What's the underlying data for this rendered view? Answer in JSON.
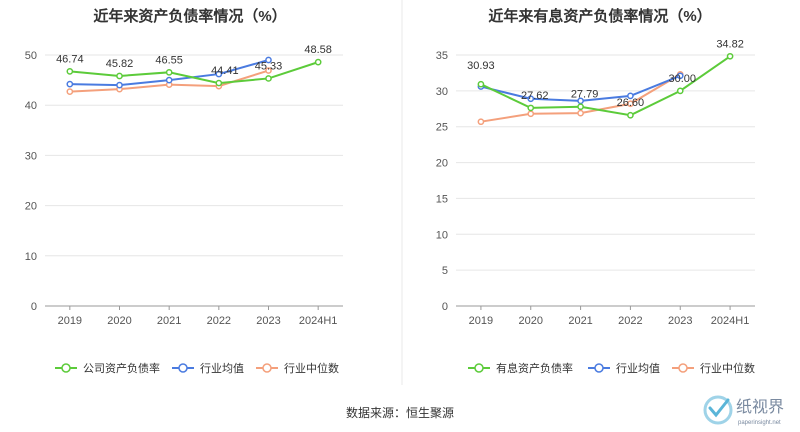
{
  "source_label": "数据来源：恒生聚源",
  "logo": {
    "name": "纸视界",
    "url": "paperinsight.net"
  },
  "colors": {
    "green": "#5ccb3a",
    "blue": "#4a7be0",
    "orange": "#f4a07c"
  },
  "chart_data": [
    {
      "type": "line",
      "title": "近年来资产负债率情况（%）",
      "categories": [
        "2019",
        "2020",
        "2021",
        "2022",
        "2023",
        "2024H1"
      ],
      "ylim": [
        0,
        50
      ],
      "yticks": [
        0,
        10,
        20,
        30,
        40,
        50
      ],
      "grid": true,
      "legend_position": "bottom",
      "series": [
        {
          "name": "公司资产负债率",
          "color": "#5ccb3a",
          "values": [
            46.74,
            45.82,
            46.55,
            44.41,
            45.33,
            48.58
          ],
          "labels": [
            "46.74",
            "45.82",
            "46.55",
            "44.41",
            "45.33",
            "48.58"
          ]
        },
        {
          "name": "行业均值",
          "color": "#4a7be0",
          "values": [
            44.2,
            44.0,
            45.0,
            46.2,
            49.0,
            null
          ]
        },
        {
          "name": "行业中位数",
          "color": "#f4a07c",
          "values": [
            42.7,
            43.2,
            44.1,
            43.8,
            46.9,
            null
          ]
        }
      ]
    },
    {
      "type": "line",
      "title": "近年来有息资产负债率情况（%）",
      "categories": [
        "2019",
        "2020",
        "2021",
        "2022",
        "2023",
        "2024H1"
      ],
      "ylim": [
        0,
        35
      ],
      "yticks": [
        0,
        5,
        10,
        15,
        20,
        25,
        30,
        35
      ],
      "grid": true,
      "legend_position": "bottom",
      "series": [
        {
          "name": "有息资产负债率",
          "color": "#5ccb3a",
          "values": [
            30.93,
            27.62,
            27.79,
            26.6,
            30.0,
            34.82
          ],
          "labels": [
            "30.93",
            "27.62",
            "27.79",
            "26.60",
            "30.00",
            "34.82"
          ]
        },
        {
          "name": "行业均值",
          "color": "#4a7be0",
          "values": [
            30.6,
            28.9,
            28.6,
            29.3,
            32.1,
            null
          ]
        },
        {
          "name": "行业中位数",
          "color": "#f4a07c",
          "values": [
            25.7,
            26.8,
            26.9,
            28.2,
            32.3,
            null
          ]
        }
      ]
    }
  ]
}
